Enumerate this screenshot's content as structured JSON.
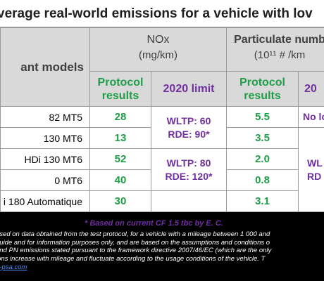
{
  "title": "verage real-world emissions for a vehicle with lov",
  "colors": {
    "green": "#1f9e48",
    "purple": "#7030a0",
    "header_gray": "#d9d9d9",
    "link": "#4a8fff"
  },
  "header": {
    "models": "ant models",
    "nox_title": "NOx",
    "nox_unit": "(mg/km)",
    "pn_title": "Particulate numb",
    "pn_unit": "(10¹¹ # /km",
    "protocol_results": "Protocol results",
    "limit_2020": "2020 limit",
    "limit_2020_cut": "20"
  },
  "rows": [
    {
      "model": "82 MT5",
      "nox": "28",
      "pn": "5.5"
    },
    {
      "model": "130 MT6",
      "nox": "13",
      "pn": "3.5"
    },
    {
      "model": "HDi 130 MT6",
      "nox": "52",
      "pn": "2.0"
    },
    {
      "model": "0 MT6",
      "nox": "40",
      "pn": "0.8"
    },
    {
      "model": "i 180 Automatique",
      "nox": "30",
      "pn": "3.1"
    }
  ],
  "nox_limits": [
    {
      "wltp": "WLTP: 60",
      "rde": "RDE: 90*"
    },
    {
      "wltp": "WLTP: 80",
      "rde": "RDE: 120*"
    }
  ],
  "pn_limits": {
    "first": "No lo",
    "wltp": "WL",
    "rde": "RD"
  },
  "footnote": "* Based on current CF 1.5 tbc by E. C.",
  "disclaimer": [
    "ased on data obtained from the test protocol, for a vehicle with a mileage between 1 000 and",
    "guide and for information purposes only, and are based on the assumptions and conditions o",
    "and PN emissions stated pursuant to the framework directive 2007/46/EC (which are the only",
    "ions increase with mileage and fluctuate according to the usage conditions of the vehicle. T"
  ],
  "link_text": "e-psa.com"
}
